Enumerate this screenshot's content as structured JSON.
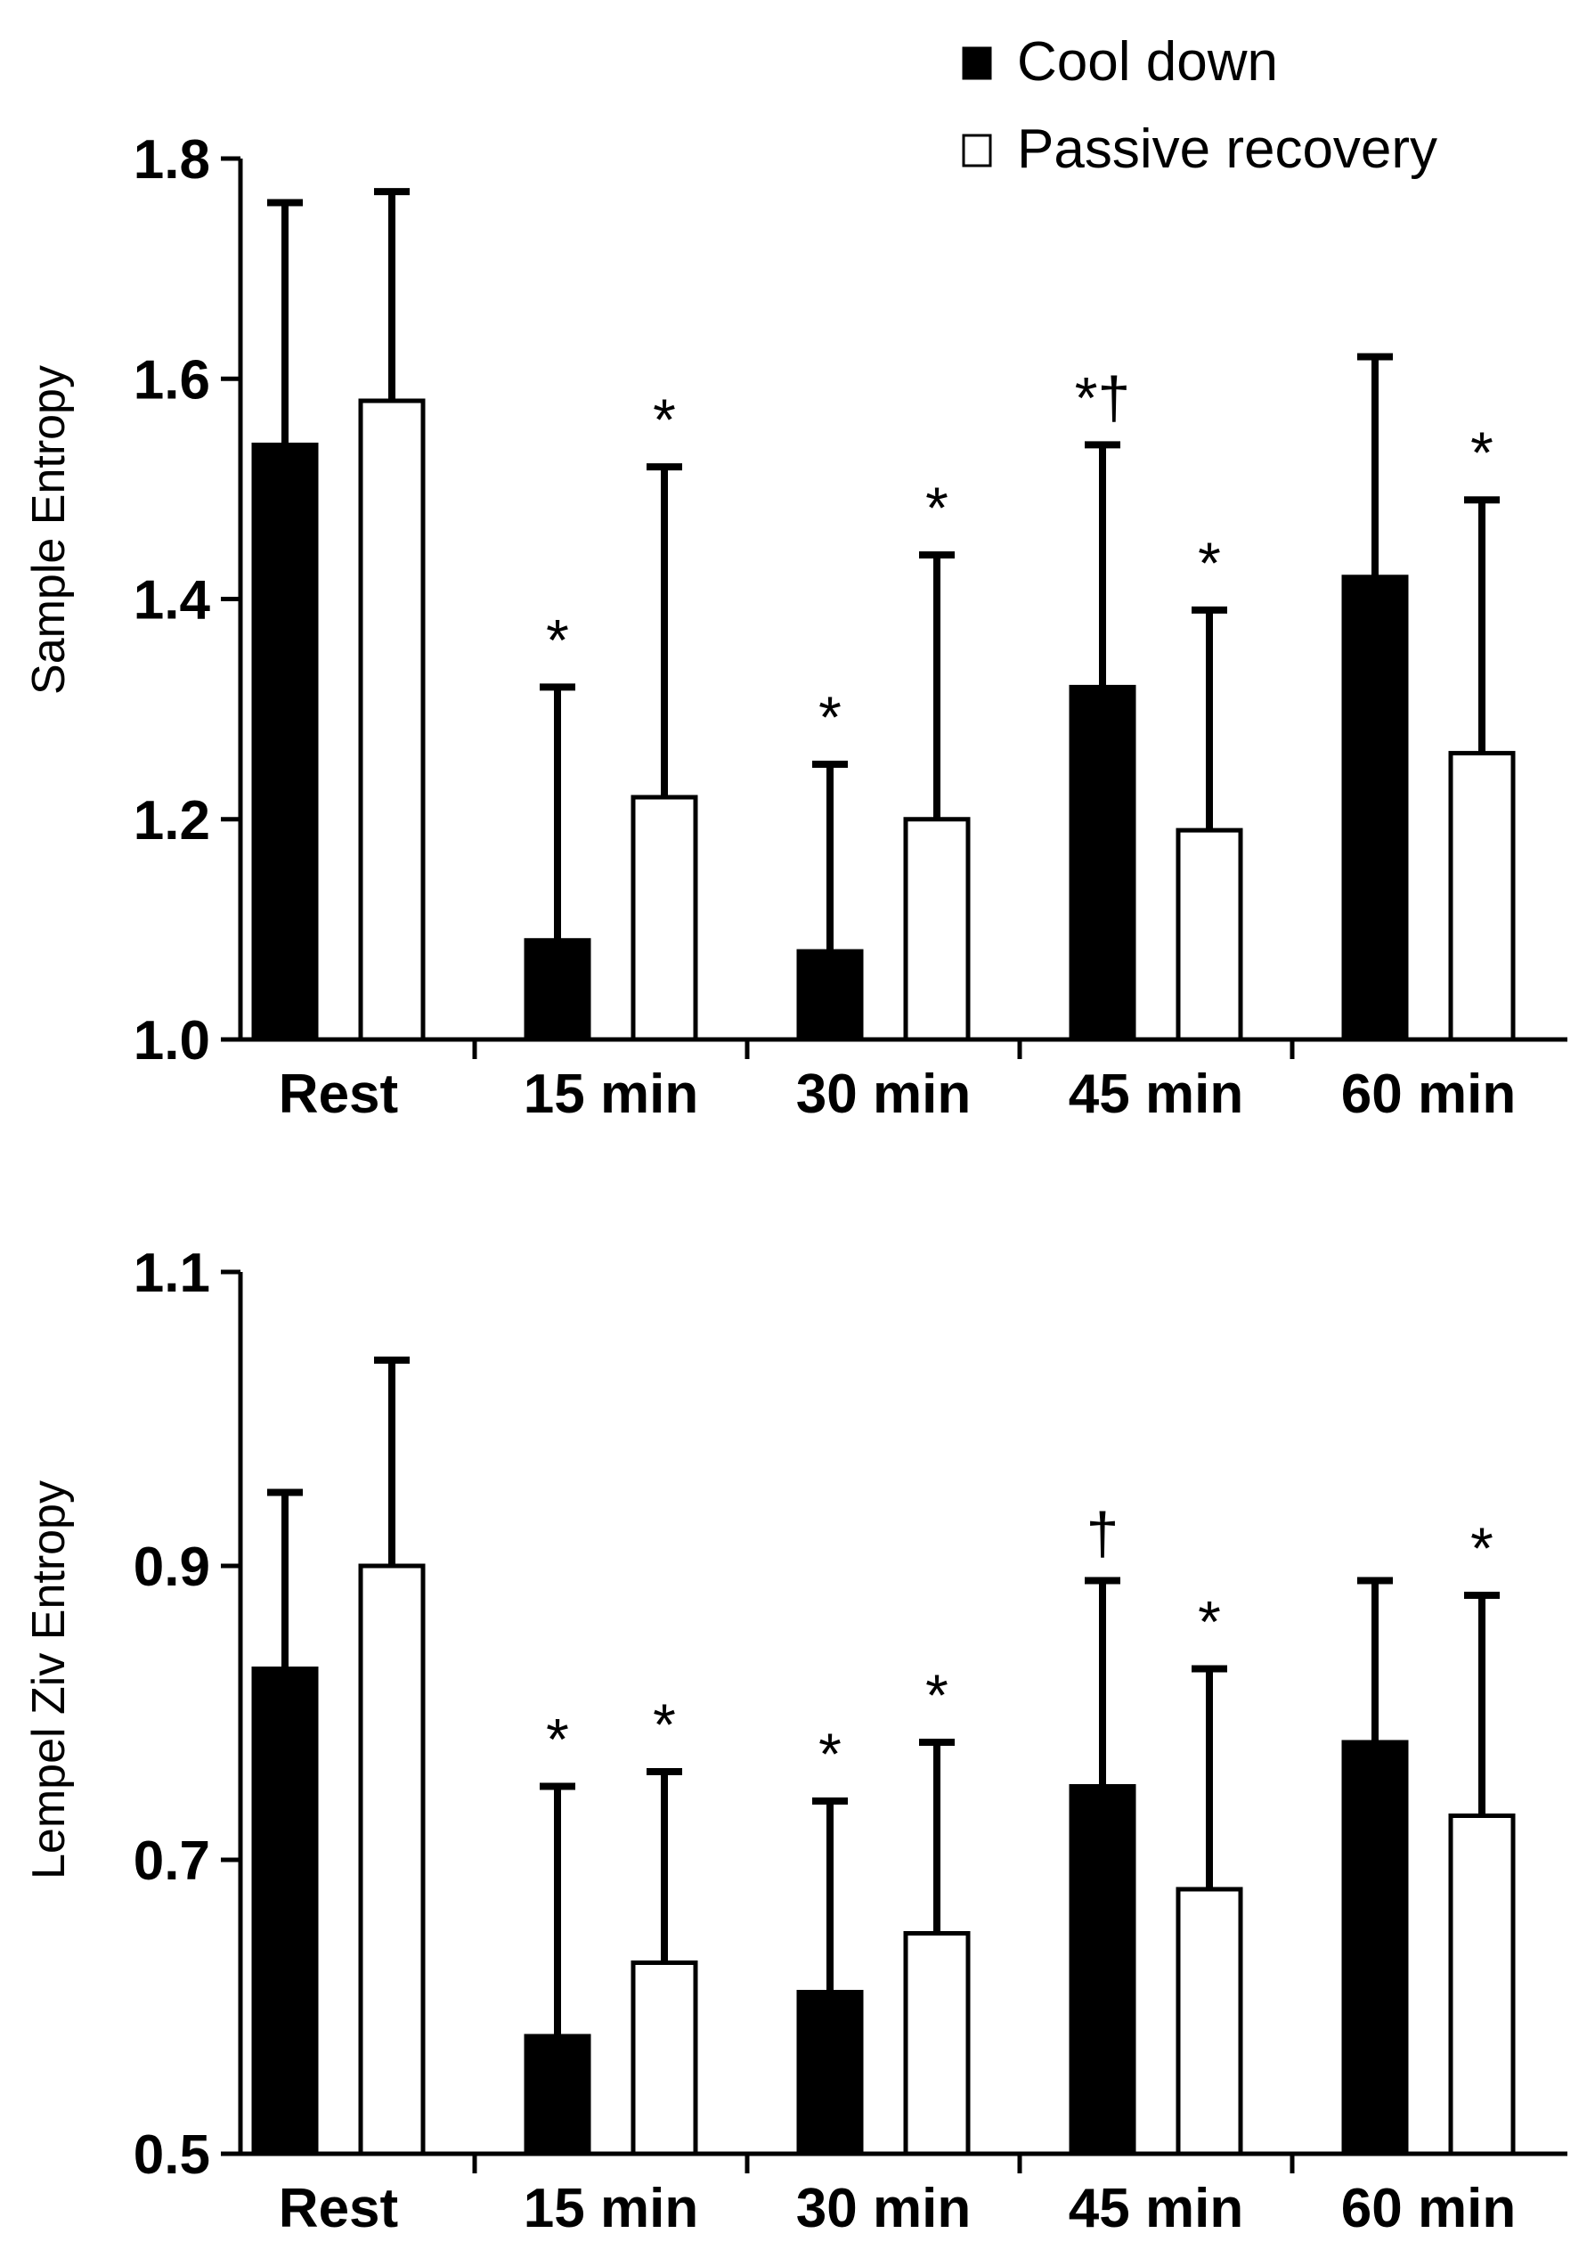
{
  "legend": {
    "entries": [
      {
        "name": "Cool down",
        "color": "#000000"
      },
      {
        "name": "Passive recovery",
        "color": "#ffffff"
      }
    ]
  },
  "chart_data": [
    {
      "type": "bar",
      "ylabel": "Sample Entropy",
      "xlabel": "",
      "ylim": [
        1.0,
        1.8
      ],
      "yticks": [
        "1.0",
        "1.2",
        "1.4",
        "1.6",
        "1.8"
      ],
      "categories": [
        "Rest",
        "15 min",
        "30 min",
        "45 min",
        "60 min"
      ],
      "series": [
        {
          "name": "Cool down",
          "values": [
            1.54,
            1.09,
            1.08,
            1.32,
            1.42
          ],
          "err_upper": [
            1.76,
            1.32,
            1.25,
            1.54,
            1.62
          ],
          "annotations": [
            "",
            "*",
            "*",
            "*†",
            ""
          ]
        },
        {
          "name": "Passive recovery",
          "values": [
            1.58,
            1.22,
            1.2,
            1.19,
            1.26
          ],
          "err_upper": [
            1.77,
            1.52,
            1.44,
            1.39,
            1.49
          ],
          "annotations": [
            "",
            "*",
            "*",
            "*",
            "*"
          ]
        }
      ]
    },
    {
      "type": "bar",
      "ylabel": "Lempel Ziv Entropy",
      "xlabel": "",
      "ylim": [
        0.5,
        1.1
      ],
      "yticks": [
        "0.5",
        "0.7",
        "0.9",
        "1.1"
      ],
      "categories": [
        "Rest",
        "15 min",
        "30 min",
        "45 min",
        "60 min"
      ],
      "series": [
        {
          "name": "Cool down",
          "values": [
            0.83,
            0.58,
            0.61,
            0.75,
            0.78
          ],
          "err_upper": [
            0.95,
            0.75,
            0.74,
            0.89,
            0.89
          ],
          "annotations": [
            "",
            "*",
            "*",
            "†",
            ""
          ]
        },
        {
          "name": "Passive recovery",
          "values": [
            0.9,
            0.63,
            0.65,
            0.68,
            0.73
          ],
          "err_upper": [
            1.04,
            0.76,
            0.78,
            0.83,
            0.88
          ],
          "annotations": [
            "",
            "*",
            "*",
            "*",
            "*"
          ]
        }
      ]
    }
  ]
}
